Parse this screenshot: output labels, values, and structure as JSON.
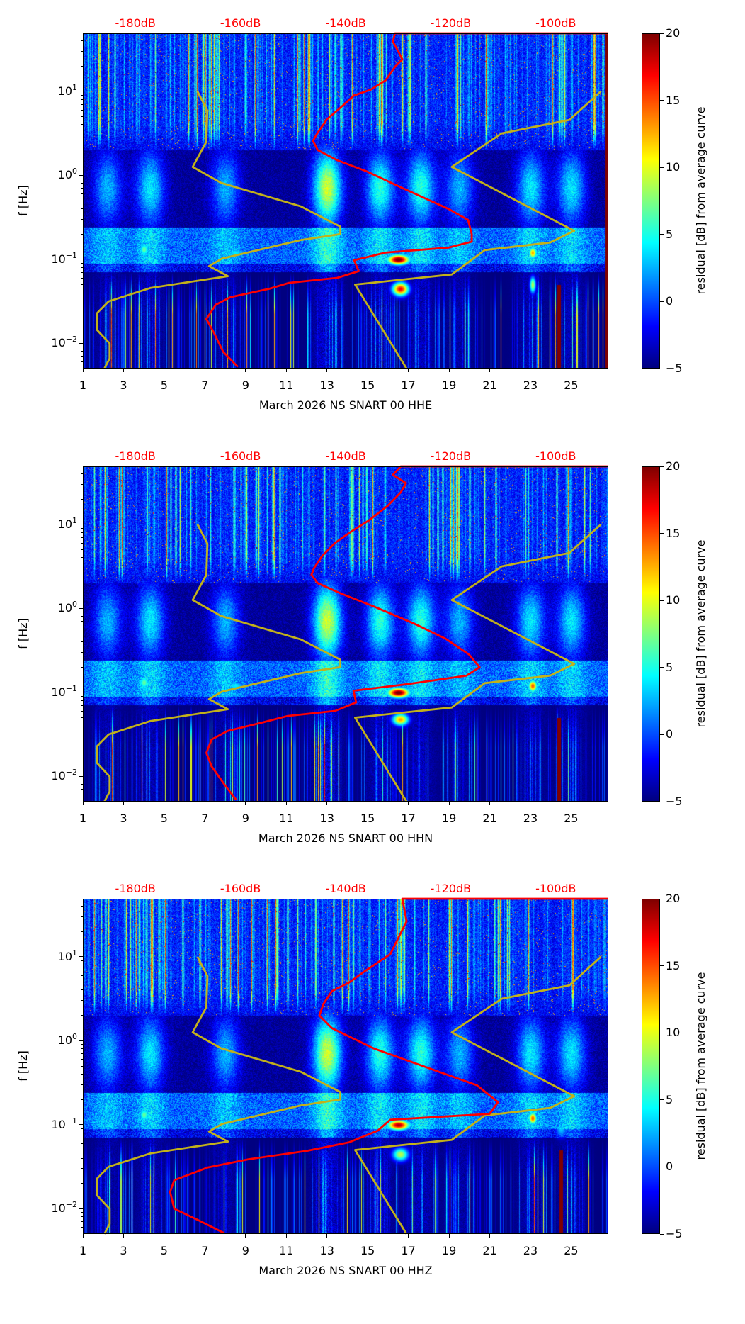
{
  "chart_data": {
    "type": "heatmap",
    "colorbar": {
      "label": "residual [dB] from average curve",
      "range": [
        -5,
        20
      ],
      "ticks": [
        "20",
        "15",
        "10",
        "5",
        "0",
        "−5"
      ],
      "tick_values": [
        20,
        15,
        10,
        5,
        0,
        -5
      ],
      "colormap": "jet"
    },
    "xlim": [
      1,
      26.83
    ],
    "x_ticks": [
      "1",
      "3",
      "5",
      "7",
      "9",
      "11",
      "13",
      "15",
      "17",
      "19",
      "21",
      "23",
      "25"
    ],
    "x_tick_values": [
      1,
      3,
      5,
      7,
      9,
      11,
      13,
      15,
      17,
      19,
      21,
      23,
      25
    ],
    "ylabel": "f [Hz]",
    "ylim_log10": [
      -2.3,
      1.69
    ],
    "y_ticks": [
      {
        "base": "10",
        "exp": "1",
        "v": 1
      },
      {
        "base": "10",
        "exp": "0",
        "v": 0
      },
      {
        "base": "10",
        "exp": "−1",
        "v": -1
      },
      {
        "base": "10",
        "exp": "−2",
        "v": -2
      }
    ],
    "top_axis": {
      "db_range": [
        -190,
        -90
      ],
      "ticks": [
        "-180dB",
        "-160dB",
        "-140dB",
        "-120dB",
        "-100dB"
      ],
      "tick_values": [
        -180,
        -160,
        -140,
        -120,
        -100
      ],
      "color": "#ff0000"
    },
    "curve_colors": {
      "median": "#ff0000",
      "noise_models": "#c2b11a"
    },
    "nlnm": [
      [
        -168.2,
        1.0
      ],
      [
        -166.3,
        0.77
      ],
      [
        -166.5,
        0.4
      ],
      [
        -169.1,
        0.1
      ],
      [
        -163.7,
        -0.09
      ],
      [
        -148.5,
        -0.37
      ],
      [
        -141.0,
        -0.61
      ],
      [
        -141.0,
        -0.7
      ],
      [
        -148.5,
        -0.77
      ],
      [
        -163.5,
        -0.99
      ],
      [
        -166.0,
        -1.08
      ],
      [
        -162.4,
        -1.2
      ],
      [
        -177.1,
        -1.34
      ],
      [
        -185.1,
        -1.5
      ],
      [
        -187.3,
        -1.64
      ],
      [
        -187.3,
        -1.84
      ],
      [
        -184.9,
        -2.0
      ],
      [
        -184.9,
        -2.18
      ],
      [
        -185.9,
        -2.3
      ]
    ],
    "nhnm": [
      [
        -91.4,
        1.0
      ],
      [
        -97.4,
        0.66
      ],
      [
        -110.3,
        0.5
      ],
      [
        -119.8,
        0.1
      ],
      [
        -96.5,
        -0.66
      ],
      [
        -101.1,
        -0.8
      ],
      [
        -113.5,
        -0.89
      ],
      [
        -119.8,
        -1.18
      ],
      [
        -138.2,
        -1.3
      ],
      [
        -128.4,
        -2.3
      ]
    ],
    "panels": [
      {
        "xlabel": "March 2026 NS SNART 00 HHE",
        "median_curve": [
          [
            -90,
            1.69
          ],
          [
            -130.6,
            1.69
          ],
          [
            -131.0,
            1.59
          ],
          [
            -130.1,
            1.49
          ],
          [
            -129.2,
            1.38
          ],
          [
            -130.6,
            1.29
          ],
          [
            -132.4,
            1.13
          ],
          [
            -135.2,
            1.02
          ],
          [
            -138.4,
            0.95
          ],
          [
            -140.7,
            0.82
          ],
          [
            -143.5,
            0.67
          ],
          [
            -145.3,
            0.51
          ],
          [
            -146.2,
            0.41
          ],
          [
            -145.3,
            0.3
          ],
          [
            -141.6,
            0.18
          ],
          [
            -136.1,
            0.05
          ],
          [
            -129.6,
            -0.14
          ],
          [
            -125.0,
            -0.27
          ],
          [
            -120.4,
            -0.4
          ],
          [
            -116.7,
            -0.53
          ],
          [
            -116.0,
            -0.7
          ],
          [
            -116.0,
            -0.79
          ],
          [
            -120.4,
            -0.86
          ],
          [
            -132.4,
            -0.92
          ],
          [
            -138.4,
            -1.01
          ],
          [
            -137.5,
            -1.14
          ],
          [
            -141.6,
            -1.22
          ],
          [
            -150.8,
            -1.28
          ],
          [
            -154.5,
            -1.35
          ],
          [
            -161.9,
            -1.45
          ],
          [
            -164.7,
            -1.54
          ],
          [
            -166.5,
            -1.71
          ],
          [
            -165.1,
            -1.87
          ],
          [
            -163.3,
            -2.1
          ],
          [
            -160.5,
            -2.28
          ]
        ],
        "hot_spots": [
          [
            16.5,
            -1.0,
            26,
            0.55,
            0.06
          ],
          [
            16.6,
            -1.35,
            22,
            0.4,
            0.08
          ],
          [
            4,
            -0.88,
            12,
            0.25,
            0.08
          ],
          [
            23.1,
            -0.92,
            18,
            0.2,
            0.07
          ],
          [
            23.1,
            -1.3,
            14,
            0.15,
            0.1
          ],
          [
            8.5,
            -0.92,
            9,
            0.5,
            0.06
          ],
          [
            25,
            -0.95,
            10,
            0.15,
            0.05
          ]
        ],
        "red_stripes": [
          [
            26.75,
            -2.3,
            1.69
          ],
          [
            24.4,
            -2.3,
            -1.3
          ]
        ]
      },
      {
        "xlabel": "March 2026 NS SNART 00 HHN",
        "median_curve": [
          [
            -90,
            1.69
          ],
          [
            -129.5,
            1.69
          ],
          [
            -131.0,
            1.59
          ],
          [
            -128.5,
            1.49
          ],
          [
            -129.5,
            1.38
          ],
          [
            -132.0,
            1.22
          ],
          [
            -135.5,
            1.05
          ],
          [
            -138.8,
            0.92
          ],
          [
            -142.0,
            0.78
          ],
          [
            -144.5,
            0.62
          ],
          [
            -146.0,
            0.48
          ],
          [
            -146.5,
            0.4
          ],
          [
            -145.3,
            0.3
          ],
          [
            -141.0,
            0.18
          ],
          [
            -134.5,
            0.02
          ],
          [
            -127.0,
            -0.18
          ],
          [
            -121.0,
            -0.36
          ],
          [
            -116.5,
            -0.55
          ],
          [
            -114.5,
            -0.7
          ],
          [
            -117.0,
            -0.8
          ],
          [
            -128.0,
            -0.9
          ],
          [
            -138.5,
            -0.98
          ],
          [
            -138.0,
            -1.12
          ],
          [
            -142.0,
            -1.22
          ],
          [
            -151.0,
            -1.28
          ],
          [
            -156.0,
            -1.36
          ],
          [
            -162.5,
            -1.46
          ],
          [
            -165.5,
            -1.56
          ],
          [
            -166.5,
            -1.72
          ],
          [
            -165.5,
            -1.88
          ],
          [
            -163.0,
            -2.1
          ],
          [
            -160.8,
            -2.28
          ]
        ],
        "hot_spots": [
          [
            16.5,
            -1.0,
            26,
            0.55,
            0.06
          ],
          [
            16.6,
            -1.32,
            18,
            0.4,
            0.07
          ],
          [
            4,
            -0.88,
            12,
            0.25,
            0.08
          ],
          [
            23.1,
            -0.92,
            20,
            0.22,
            0.07
          ],
          [
            8.5,
            -0.92,
            9,
            0.5,
            0.06
          ],
          [
            25,
            -0.95,
            9,
            0.15,
            0.05
          ]
        ],
        "red_stripes": [
          [
            24.4,
            -2.3,
            -1.3
          ]
        ]
      },
      {
        "xlabel": "March 2026 NS SNART 00 HHZ",
        "median_curve": [
          [
            -90,
            1.69
          ],
          [
            -129.2,
            1.69
          ],
          [
            -128.4,
            1.42
          ],
          [
            -130.0,
            1.22
          ],
          [
            -131.5,
            1.03
          ],
          [
            -136.3,
            0.83
          ],
          [
            -139.4,
            0.69
          ],
          [
            -142.6,
            0.59
          ],
          [
            -144.2,
            0.44
          ],
          [
            -145.0,
            0.3
          ],
          [
            -142.6,
            0.15
          ],
          [
            -134.7,
            -0.09
          ],
          [
            -123.6,
            -0.34
          ],
          [
            -115.0,
            -0.53
          ],
          [
            -111.0,
            -0.73
          ],
          [
            -112.6,
            -0.87
          ],
          [
            -131.5,
            -0.94
          ],
          [
            -133.9,
            -1.07
          ],
          [
            -139.4,
            -1.21
          ],
          [
            -147.3,
            -1.31
          ],
          [
            -158.4,
            -1.41
          ],
          [
            -166.3,
            -1.51
          ],
          [
            -172.6,
            -1.66
          ],
          [
            -173.4,
            -1.8
          ],
          [
            -172.6,
            -2.0
          ],
          [
            -167.9,
            -2.14
          ],
          [
            -163.1,
            -2.29
          ]
        ],
        "hot_spots": [
          [
            16.5,
            -1.0,
            24,
            0.55,
            0.06
          ],
          [
            16.6,
            -1.35,
            14,
            0.4,
            0.08
          ],
          [
            4,
            -0.88,
            12,
            0.25,
            0.08
          ],
          [
            23.1,
            -0.92,
            20,
            0.2,
            0.07
          ],
          [
            8.5,
            -0.92,
            8,
            0.5,
            0.06
          ],
          [
            24.5,
            -1.05,
            8,
            0.3,
            0.1
          ]
        ],
        "red_stripes": [
          [
            24.5,
            -2.3,
            -1.3
          ]
        ]
      }
    ],
    "diffuse_event_days": [
      [
        2.2,
        5
      ],
      [
        4.3,
        6
      ],
      [
        8,
        5
      ],
      [
        13,
        10
      ],
      [
        15.6,
        7
      ],
      [
        17.6,
        7
      ],
      [
        19.5,
        5
      ],
      [
        23,
        6
      ],
      [
        25,
        6
      ]
    ]
  }
}
